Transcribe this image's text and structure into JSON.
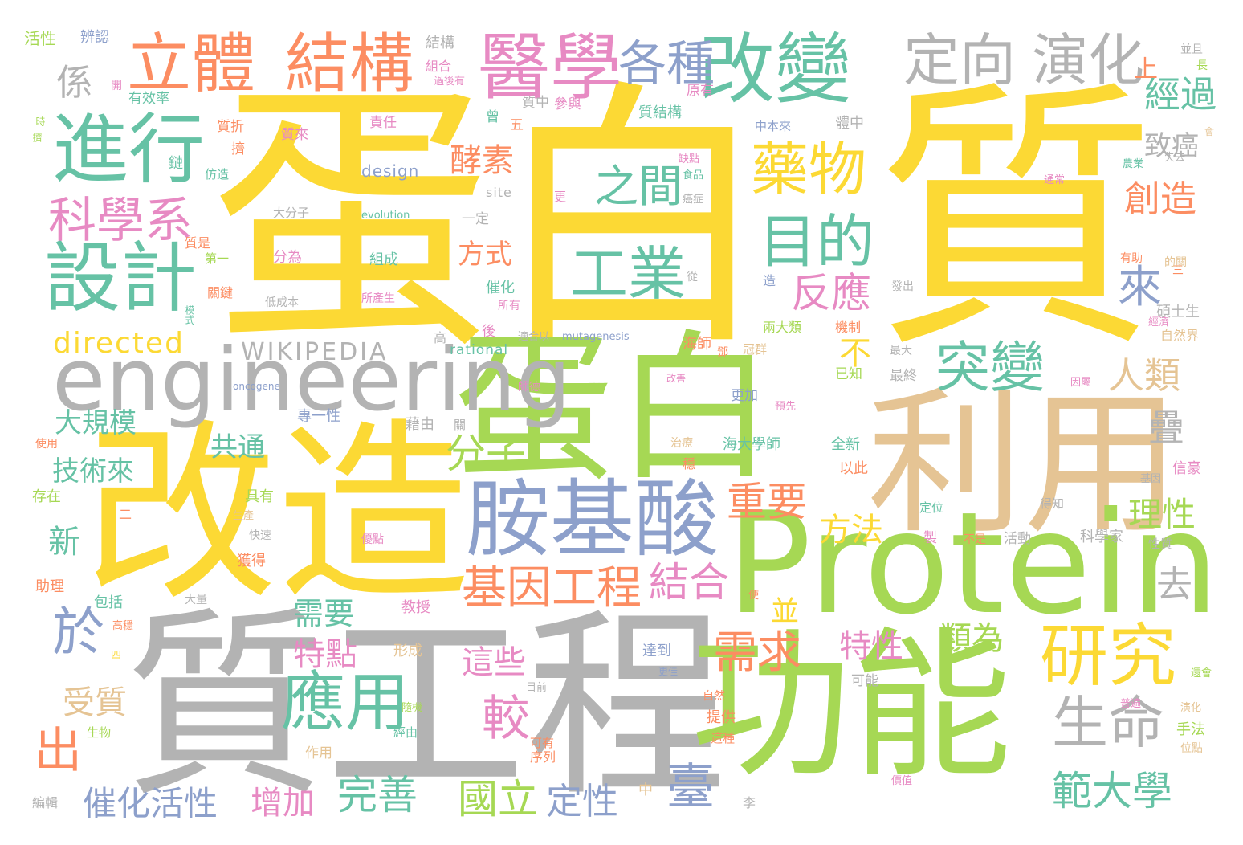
{
  "palette": {
    "yellow": "#fcd934",
    "green": "#a6d854",
    "grey": "#b3b3b3",
    "tan": "#e5c494",
    "orange": "#fc8d62",
    "blue": "#8da0cb",
    "teal": "#66c2a5",
    "pink": "#e78ac3"
  },
  "words": [
    {
      "text": "蛋白",
      "color": "yellow"
    },
    {
      "text": "質",
      "color": "yellow"
    },
    {
      "text": "改造",
      "color": "yellow"
    },
    {
      "text": "蛋白",
      "color": "green"
    },
    {
      "text": "質工程",
      "color": "grey"
    },
    {
      "text": "利用",
      "color": "tan"
    },
    {
      "text": "Protein",
      "color": "green"
    },
    {
      "text": "功能",
      "color": "green"
    },
    {
      "text": "engineering",
      "color": "grey"
    },
    {
      "text": "改變",
      "color": "teal"
    },
    {
      "text": "醫學",
      "color": "pink"
    },
    {
      "text": "立體",
      "color": "orange"
    },
    {
      "text": "結構",
      "color": "orange"
    },
    {
      "text": "定向",
      "color": "grey"
    },
    {
      "text": "演化",
      "color": "grey"
    },
    {
      "text": "各種",
      "color": "blue"
    },
    {
      "text": "進行",
      "color": "teal"
    },
    {
      "text": "設計",
      "color": "teal"
    },
    {
      "text": "科學系",
      "color": "pink"
    },
    {
      "text": "胺基酸",
      "color": "blue"
    },
    {
      "text": "研究",
      "color": "yellow"
    },
    {
      "text": "應用",
      "color": "teal"
    },
    {
      "text": "藥物",
      "color": "yellow"
    },
    {
      "text": "目的",
      "color": "teal"
    },
    {
      "text": "突變",
      "color": "teal"
    },
    {
      "text": "之間",
      "color": "teal"
    },
    {
      "text": "工業",
      "color": "teal"
    },
    {
      "text": "生命",
      "color": "grey"
    },
    {
      "text": "於",
      "color": "blue"
    },
    {
      "text": "基因工程",
      "color": "orange"
    },
    {
      "text": "結合",
      "color": "pink"
    },
    {
      "text": "反應",
      "color": "pink"
    },
    {
      "text": "需求",
      "color": "orange"
    },
    {
      "text": "經過",
      "color": "teal"
    },
    {
      "text": "創造",
      "color": "orange"
    },
    {
      "text": "重要",
      "color": "orange"
    },
    {
      "text": "分子",
      "color": "green"
    },
    {
      "text": "較",
      "color": "pink"
    },
    {
      "text": "出",
      "color": "orange"
    },
    {
      "text": "範大學",
      "color": "teal"
    },
    {
      "text": "國立",
      "color": "green"
    },
    {
      "text": "完善",
      "color": "teal"
    },
    {
      "text": "臺",
      "color": "blue"
    },
    {
      "text": "定性",
      "color": "blue"
    },
    {
      "text": "催化活性",
      "color": "blue"
    },
    {
      "text": "增加",
      "color": "pink"
    },
    {
      "text": "這些",
      "color": "pink"
    },
    {
      "text": "特點",
      "color": "pink"
    },
    {
      "text": "特性",
      "color": "pink"
    },
    {
      "text": "類為",
      "color": "green"
    },
    {
      "text": "酵素",
      "color": "orange"
    },
    {
      "text": "人類",
      "color": "tan"
    },
    {
      "text": "來",
      "color": "blue"
    },
    {
      "text": "directed",
      "color": "yellow"
    },
    {
      "text": "WIKIPEDIA",
      "color": "grey"
    },
    {
      "text": "共通",
      "color": "teal"
    },
    {
      "text": "大規模",
      "color": "teal"
    },
    {
      "text": "技術來",
      "color": "teal"
    },
    {
      "text": "受質",
      "color": "tan"
    },
    {
      "text": "方法",
      "color": "yellow"
    },
    {
      "text": "理性",
      "color": "green"
    },
    {
      "text": "疊",
      "color": "grey"
    },
    {
      "text": "去",
      "color": "grey"
    },
    {
      "text": "致癌",
      "color": "grey"
    },
    {
      "text": "上",
      "color": "orange"
    },
    {
      "text": "係",
      "color": "grey"
    },
    {
      "text": "不",
      "color": "yellow"
    },
    {
      "text": "並",
      "color": "yellow"
    },
    {
      "text": "需要",
      "color": "teal"
    },
    {
      "text": "新",
      "color": "teal"
    },
    {
      "text": "方式",
      "color": "orange"
    },
    {
      "text": "活性",
      "color": "green"
    },
    {
      "text": "辨認",
      "color": "blue"
    },
    {
      "text": "結構",
      "color": "grey"
    },
    {
      "text": "組合",
      "color": "pink"
    },
    {
      "text": "過後有",
      "color": "pink"
    },
    {
      "text": "原有",
      "color": "pink"
    },
    {
      "text": "有效率",
      "color": "teal"
    },
    {
      "text": "質中",
      "color": "grey"
    },
    {
      "text": "參與",
      "color": "pink"
    },
    {
      "text": "質結構",
      "color": "teal"
    },
    {
      "text": "並且",
      "color": "grey"
    },
    {
      "text": "長",
      "color": "green"
    },
    {
      "text": "開",
      "color": "pink"
    },
    {
      "text": "質折",
      "color": "orange"
    },
    {
      "text": "質來",
      "color": "pink"
    },
    {
      "text": "責任",
      "color": "pink"
    },
    {
      "text": "曾",
      "color": "teal"
    },
    {
      "text": "五",
      "color": "orange"
    },
    {
      "text": "中本來",
      "color": "blue"
    },
    {
      "text": "體中",
      "color": "grey"
    },
    {
      "text": "design",
      "color": "blue"
    },
    {
      "text": "site",
      "color": "grey"
    },
    {
      "text": "evolution",
      "color": "teal"
    },
    {
      "text": "大分子",
      "color": "grey"
    },
    {
      "text": "一定",
      "color": "grey"
    },
    {
      "text": "質是",
      "color": "orange"
    },
    {
      "text": "第一",
      "color": "green"
    },
    {
      "text": "分為",
      "color": "pink"
    },
    {
      "text": "組成",
      "color": "teal"
    },
    {
      "text": "關鍵",
      "color": "orange"
    },
    {
      "text": "低成本",
      "color": "grey"
    },
    {
      "text": "所產生",
      "color": "pink"
    },
    {
      "text": "所有",
      "color": "pink"
    },
    {
      "text": "催化",
      "color": "teal"
    },
    {
      "text": "高",
      "color": "grey"
    },
    {
      "text": "後",
      "color": "pink"
    },
    {
      "text": "適合以",
      "color": "grey"
    },
    {
      "text": "mutagenesis",
      "color": "blue"
    },
    {
      "text": "rational",
      "color": "teal"
    },
    {
      "text": "海師",
      "color": "orange"
    },
    {
      "text": "冠群",
      "color": "tan"
    },
    {
      "text": "兩大類",
      "color": "green"
    },
    {
      "text": "機制",
      "color": "orange"
    },
    {
      "text": "最大",
      "color": "grey"
    },
    {
      "text": "最終",
      "color": "grey"
    },
    {
      "text": "已知",
      "color": "green"
    },
    {
      "text": "更加",
      "color": "blue"
    },
    {
      "text": "預先",
      "color": "pink"
    },
    {
      "text": "改善",
      "color": "pink"
    },
    {
      "text": "師德",
      "color": "pink"
    },
    {
      "text": "oncogene",
      "color": "blue"
    },
    {
      "text": "專一性",
      "color": "blue"
    },
    {
      "text": "藉由",
      "color": "grey"
    },
    {
      "text": "關",
      "color": "grey"
    },
    {
      "text": "全新",
      "color": "teal"
    },
    {
      "text": "以此",
      "color": "orange"
    },
    {
      "text": "海大學師",
      "color": "teal"
    },
    {
      "text": "治療",
      "color": "tan"
    },
    {
      "text": "穩",
      "color": "orange"
    },
    {
      "text": "具有",
      "color": "green"
    },
    {
      "text": "存在",
      "color": "green"
    },
    {
      "text": "使用",
      "color": "orange"
    },
    {
      "text": "二",
      "color": "orange"
    },
    {
      "text": "生產",
      "color": "tan"
    },
    {
      "text": "快速",
      "color": "grey"
    },
    {
      "text": "優點",
      "color": "pink"
    },
    {
      "text": "獲得",
      "color": "orange"
    },
    {
      "text": "助理",
      "color": "orange"
    },
    {
      "text": "包括",
      "color": "teal"
    },
    {
      "text": "大量",
      "color": "grey"
    },
    {
      "text": "教授",
      "color": "pink"
    },
    {
      "text": "高穩",
      "color": "orange"
    },
    {
      "text": "四",
      "color": "yellow"
    },
    {
      "text": "形成",
      "color": "tan"
    },
    {
      "text": "達到",
      "color": "blue"
    },
    {
      "text": "目前",
      "color": "grey"
    },
    {
      "text": "隨機",
      "color": "green"
    },
    {
      "text": "經由",
      "color": "teal"
    },
    {
      "text": "生物",
      "color": "green"
    },
    {
      "text": "作用",
      "color": "tan"
    },
    {
      "text": "可有",
      "color": "orange"
    },
    {
      "text": "序列",
      "color": "orange"
    },
    {
      "text": "中",
      "color": "tan"
    },
    {
      "text": "編輯",
      "color": "grey"
    },
    {
      "text": "李",
      "color": "grey"
    },
    {
      "text": "提供",
      "color": "orange"
    },
    {
      "text": "這種",
      "color": "orange"
    },
    {
      "text": "自然",
      "color": "orange"
    },
    {
      "text": "可能",
      "color": "grey"
    },
    {
      "text": "手法",
      "color": "green"
    },
    {
      "text": "位點",
      "color": "tan"
    },
    {
      "text": "演化",
      "color": "tan"
    },
    {
      "text": "普遍",
      "color": "pink"
    },
    {
      "text": "價值",
      "color": "pink"
    },
    {
      "text": "還會",
      "color": "green"
    },
    {
      "text": "更佳",
      "color": "blue"
    },
    {
      "text": "使",
      "color": "orange"
    },
    {
      "text": "得知",
      "color": "grey"
    },
    {
      "text": "定位",
      "color": "teal"
    },
    {
      "text": "製",
      "color": "pink"
    },
    {
      "text": "不是",
      "color": "orange"
    },
    {
      "text": "活動",
      "color": "grey"
    },
    {
      "text": "科學家",
      "color": "grey"
    },
    {
      "text": "性質",
      "color": "grey"
    },
    {
      "text": "信豪",
      "color": "pink"
    },
    {
      "text": "基因",
      "color": "grey"
    },
    {
      "text": "因屬",
      "color": "pink"
    },
    {
      "text": "自然界",
      "color": "tan"
    },
    {
      "text": "碩士生",
      "color": "grey"
    },
    {
      "text": "經濟",
      "color": "pink"
    },
    {
      "text": "三",
      "color": "orange"
    },
    {
      "text": "發出",
      "color": "grey"
    },
    {
      "text": "有助",
      "color": "orange"
    },
    {
      "text": "的關",
      "color": "tan"
    },
    {
      "text": "從",
      "color": "grey"
    },
    {
      "text": "造",
      "color": "blue"
    },
    {
      "text": "鄧",
      "color": "orange"
    },
    {
      "text": "農業",
      "color": "teal"
    },
    {
      "text": "失去",
      "color": "grey"
    },
    {
      "text": "會",
      "color": "tan"
    },
    {
      "text": "通常",
      "color": "pink"
    },
    {
      "text": "缺點",
      "color": "pink"
    },
    {
      "text": "食品",
      "color": "teal"
    },
    {
      "text": "癌症",
      "color": "grey"
    },
    {
      "text": "更",
      "color": "pink"
    },
    {
      "text": "擠",
      "color": "orange"
    },
    {
      "text": "鏈",
      "color": "teal"
    },
    {
      "text": "仿造",
      "color": "teal"
    },
    {
      "text": "時",
      "color": "green"
    },
    {
      "text": "擠",
      "color": "green"
    },
    {
      "text": "模式",
      "color": "teal"
    }
  ]
}
